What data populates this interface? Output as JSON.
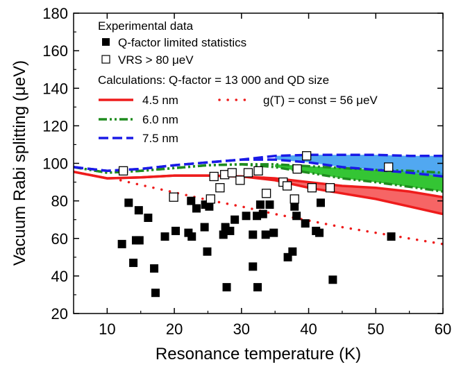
{
  "chart_data": {
    "type": "scatter",
    "title": "",
    "xlabel": "Resonance temperature (K)",
    "ylabel": "Vacuum Rabi splitting (μeV)",
    "xlim": [
      5,
      60
    ],
    "ylim": [
      20,
      180
    ],
    "xticks": [
      10,
      20,
      30,
      40,
      50,
      60
    ],
    "yticks": [
      20,
      40,
      60,
      80,
      100,
      120,
      140,
      160,
      180
    ],
    "grid": false,
    "legend_placement": "top-left",
    "legend": {
      "experimental_heading": "Experimental data",
      "q_factor_label": "Q-factor limited statistics",
      "vrs_label": "VRS > 80 μeV",
      "calculations_heading": "Calculations: Q-factor = 13 000 and QD size",
      "size_45": "4.5 nm",
      "size_60": "6.0 nm",
      "size_75": "7.5 nm",
      "g_const": "g(T) = const = 56 μeV"
    },
    "colors": {
      "red": "#ee1c1c",
      "green": "#1f8c1f",
      "blue": "#1a1ae6",
      "red_fill": "#f54a4a",
      "green_fill": "#11bb11",
      "blue_fill": "#3399ee",
      "marker": "#000000"
    },
    "series": [
      {
        "name": "Q-factor limited statistics",
        "marker": "filled-square",
        "points": [
          [
            12.2,
            57
          ],
          [
            13.2,
            79
          ],
          [
            13.9,
            47
          ],
          [
            14.3,
            59
          ],
          [
            14.7,
            75
          ],
          [
            14.8,
            59
          ],
          [
            16.1,
            71
          ],
          [
            17.0,
            44
          ],
          [
            17.2,
            31
          ],
          [
            18.6,
            61
          ],
          [
            20.2,
            64
          ],
          [
            22.1,
            63
          ],
          [
            22.5,
            80
          ],
          [
            22.6,
            61
          ],
          [
            23.3,
            76
          ],
          [
            24.5,
            66
          ],
          [
            24.6,
            78
          ],
          [
            24.9,
            53
          ],
          [
            25.2,
            77
          ],
          [
            27.3,
            62
          ],
          [
            27.6,
            66
          ],
          [
            27.8,
            34
          ],
          [
            28.3,
            64
          ],
          [
            29.0,
            70
          ],
          [
            30.7,
            72
          ],
          [
            31.7,
            45
          ],
          [
            31.7,
            62
          ],
          [
            32.3,
            72
          ],
          [
            32.4,
            34
          ],
          [
            32.8,
            78
          ],
          [
            33.2,
            73
          ],
          [
            33.6,
            62
          ],
          [
            34.2,
            78
          ],
          [
            34.8,
            63
          ],
          [
            36.9,
            50
          ],
          [
            37.6,
            53
          ],
          [
            37.9,
            77
          ],
          [
            38.2,
            72
          ],
          [
            39.5,
            68
          ],
          [
            41.1,
            64
          ],
          [
            41.6,
            63
          ],
          [
            41.8,
            79
          ],
          [
            43.6,
            38
          ],
          [
            52.3,
            61
          ]
        ]
      },
      {
        "name": "VRS > 80 μeV",
        "marker": "open-square",
        "points": [
          [
            12.4,
            96
          ],
          [
            19.9,
            82
          ],
          [
            25.4,
            81
          ],
          [
            25.9,
            93
          ],
          [
            26.8,
            87
          ],
          [
            27.5,
            94
          ],
          [
            28.6,
            95
          ],
          [
            29.8,
            91
          ],
          [
            31.0,
            95
          ],
          [
            32.5,
            96
          ],
          [
            33.7,
            84
          ],
          [
            36.2,
            90
          ],
          [
            36.8,
            88
          ],
          [
            37.9,
            81
          ],
          [
            38.3,
            97
          ],
          [
            39.7,
            104
          ],
          [
            40.5,
            87
          ],
          [
            43.2,
            87
          ],
          [
            51.9,
            98
          ]
        ]
      },
      {
        "name": "4.5 nm",
        "style": "solid",
        "x": [
          5,
          10,
          15,
          20,
          25,
          30,
          35,
          40,
          45,
          50,
          55,
          60
        ],
        "min": [
          95.5,
          92,
          92.5,
          93.5,
          93.5,
          93,
          91,
          87,
          84,
          81,
          77,
          73
        ],
        "max": [
          95.5,
          92,
          92.5,
          93.5,
          93.5,
          93,
          92,
          90,
          88,
          87,
          85,
          82
        ]
      },
      {
        "name": "6.0 nm",
        "style": "dash-dot-dot",
        "x": [
          5,
          10,
          15,
          20,
          25,
          30,
          35,
          40,
          45,
          50,
          55,
          60
        ],
        "min": [
          98,
          95,
          96,
          97.5,
          99,
          99.5,
          98,
          95,
          92,
          90,
          87.5,
          85
        ],
        "max": [
          98,
          95,
          96,
          97.5,
          99,
          99.5,
          99.5,
          98.5,
          97.5,
          96.5,
          96,
          95
        ]
      },
      {
        "name": "7.5 nm",
        "style": "dashed",
        "x": [
          5,
          10,
          15,
          20,
          25,
          30,
          35,
          40,
          45,
          50,
          55,
          60
        ],
        "min": [
          98,
          96,
          97,
          99,
          100.5,
          102,
          102,
          100.5,
          98,
          96.5,
          95,
          93
        ],
        "max": [
          98,
          96,
          97,
          99,
          100.5,
          102,
          104,
          104.5,
          104.5,
          104.5,
          104,
          104
        ]
      },
      {
        "name": "g(T) = const = 56 μeV",
        "style": "dotted",
        "x": [
          12,
          15,
          20,
          25,
          30,
          35,
          40,
          45,
          50,
          55,
          60
        ],
        "y": [
          91,
          88.5,
          84.5,
          80.5,
          77,
          73,
          69.5,
          66,
          63,
          60,
          57
        ]
      }
    ]
  }
}
